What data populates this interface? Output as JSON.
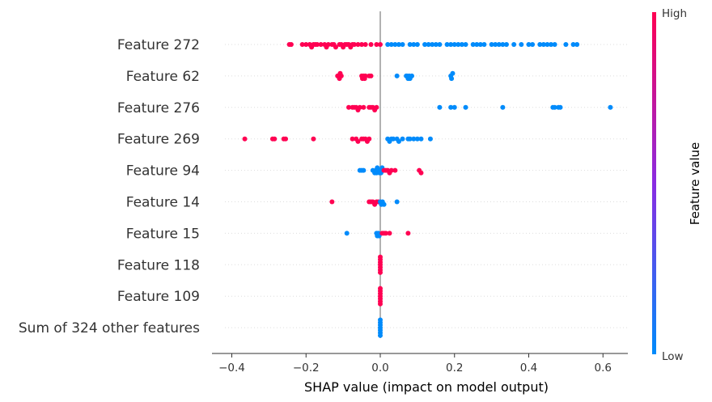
{
  "chart_data": {
    "type": "scatter",
    "subtype": "shap-beeswarm",
    "features": [
      "Feature 272",
      "Feature 62",
      "Feature 276",
      "Feature 269",
      "Feature 94",
      "Feature 14",
      "Feature 15",
      "Feature 118",
      "Feature 109",
      "Sum of 324 other features"
    ],
    "xlabel": "SHAP value (impact on model output)",
    "xticks": [
      -0.4,
      -0.2,
      0.0,
      0.2,
      0.4,
      0.6
    ],
    "xtick_labels": [
      "−0.4",
      "−0.2",
      "0.0",
      "0.2",
      "0.4",
      "0.6"
    ],
    "xlim": [
      -0.41,
      0.66
    ],
    "grid": "dotted horizontal rows",
    "colorbar": {
      "label": "Feature value",
      "high_label": "High",
      "low_label": "Low",
      "high_color": "#ff0052",
      "low_color": "#008bfb",
      "mid_color": "#8a2be2"
    },
    "series": [
      {
        "feature": "Feature 272",
        "points": [
          [
            -0.245,
            1
          ],
          [
            -0.24,
            1
          ],
          [
            -0.21,
            1
          ],
          [
            -0.2,
            1
          ],
          [
            -0.19,
            1
          ],
          [
            -0.185,
            1
          ],
          [
            -0.18,
            1
          ],
          [
            -0.175,
            1
          ],
          [
            -0.17,
            1
          ],
          [
            -0.16,
            1
          ],
          [
            -0.15,
            1
          ],
          [
            -0.145,
            1
          ],
          [
            -0.14,
            1
          ],
          [
            -0.13,
            1
          ],
          [
            -0.125,
            1
          ],
          [
            -0.12,
            1
          ],
          [
            -0.11,
            1
          ],
          [
            -0.105,
            1
          ],
          [
            -0.1,
            1
          ],
          [
            -0.095,
            1
          ],
          [
            -0.09,
            1
          ],
          [
            -0.085,
            1
          ],
          [
            -0.08,
            1
          ],
          [
            -0.075,
            1
          ],
          [
            -0.07,
            1
          ],
          [
            -0.06,
            1
          ],
          [
            -0.05,
            1
          ],
          [
            -0.04,
            1
          ],
          [
            -0.025,
            1
          ],
          [
            -0.01,
            1
          ],
          [
            0.0,
            1
          ],
          [
            0.02,
            0
          ],
          [
            0.03,
            0
          ],
          [
            0.04,
            0
          ],
          [
            0.05,
            0
          ],
          [
            0.06,
            0
          ],
          [
            0.08,
            0
          ],
          [
            0.09,
            0
          ],
          [
            0.1,
            0
          ],
          [
            0.12,
            0
          ],
          [
            0.13,
            0
          ],
          [
            0.14,
            0
          ],
          [
            0.15,
            0
          ],
          [
            0.16,
            0
          ],
          [
            0.18,
            0
          ],
          [
            0.19,
            0
          ],
          [
            0.2,
            0
          ],
          [
            0.21,
            0
          ],
          [
            0.22,
            0
          ],
          [
            0.23,
            0
          ],
          [
            0.25,
            0
          ],
          [
            0.26,
            0
          ],
          [
            0.27,
            0
          ],
          [
            0.28,
            0
          ],
          [
            0.3,
            0
          ],
          [
            0.31,
            0
          ],
          [
            0.32,
            0
          ],
          [
            0.33,
            0
          ],
          [
            0.34,
            0
          ],
          [
            0.36,
            0
          ],
          [
            0.38,
            0
          ],
          [
            0.4,
            0
          ],
          [
            0.41,
            0
          ],
          [
            0.43,
            0
          ],
          [
            0.44,
            0
          ],
          [
            0.45,
            0
          ],
          [
            0.46,
            0
          ],
          [
            0.47,
            0
          ],
          [
            0.5,
            0
          ],
          [
            0.52,
            0
          ],
          [
            0.53,
            0
          ]
        ]
      },
      {
        "feature": "Feature 62",
        "points": [
          [
            -0.115,
            1
          ],
          [
            -0.112,
            1
          ],
          [
            -0.11,
            1
          ],
          [
            -0.108,
            1
          ],
          [
            -0.105,
            1
          ],
          [
            -0.05,
            1
          ],
          [
            -0.048,
            1
          ],
          [
            -0.045,
            1
          ],
          [
            -0.042,
            1
          ],
          [
            -0.04,
            1
          ],
          [
            -0.03,
            1
          ],
          [
            -0.025,
            1
          ],
          [
            0.045,
            0
          ],
          [
            0.07,
            0
          ],
          [
            0.072,
            0
          ],
          [
            0.075,
            0
          ],
          [
            0.078,
            0
          ],
          [
            0.08,
            0
          ],
          [
            0.085,
            0
          ],
          [
            0.19,
            0
          ],
          [
            0.192,
            0
          ],
          [
            0.195,
            0
          ]
        ]
      },
      {
        "feature": "Feature 276",
        "points": [
          [
            -0.085,
            1
          ],
          [
            -0.075,
            1
          ],
          [
            -0.07,
            1
          ],
          [
            -0.065,
            1
          ],
          [
            -0.06,
            1
          ],
          [
            -0.055,
            1
          ],
          [
            -0.045,
            1
          ],
          [
            -0.03,
            1
          ],
          [
            -0.025,
            1
          ],
          [
            -0.02,
            1
          ],
          [
            -0.015,
            1
          ],
          [
            -0.01,
            1
          ],
          [
            0.16,
            0
          ],
          [
            0.19,
            0
          ],
          [
            0.2,
            0
          ],
          [
            0.23,
            0
          ],
          [
            0.33,
            0
          ],
          [
            0.465,
            0
          ],
          [
            0.47,
            0
          ],
          [
            0.48,
            0
          ],
          [
            0.485,
            0
          ],
          [
            0.62,
            0
          ]
        ]
      },
      {
        "feature": "Feature 269",
        "points": [
          [
            -0.365,
            1
          ],
          [
            -0.29,
            1
          ],
          [
            -0.285,
            1
          ],
          [
            -0.26,
            1
          ],
          [
            -0.255,
            1
          ],
          [
            -0.18,
            1
          ],
          [
            -0.075,
            1
          ],
          [
            -0.065,
            1
          ],
          [
            -0.06,
            1
          ],
          [
            -0.05,
            1
          ],
          [
            -0.045,
            1
          ],
          [
            -0.04,
            1
          ],
          [
            -0.035,
            1
          ],
          [
            -0.03,
            1
          ],
          [
            0.02,
            0
          ],
          [
            0.025,
            0
          ],
          [
            0.03,
            0
          ],
          [
            0.035,
            0
          ],
          [
            0.045,
            0
          ],
          [
            0.05,
            0
          ],
          [
            0.06,
            0
          ],
          [
            0.075,
            0
          ],
          [
            0.08,
            0
          ],
          [
            0.09,
            0
          ],
          [
            0.1,
            0
          ],
          [
            0.11,
            0
          ],
          [
            0.135,
            0
          ]
        ]
      },
      {
        "feature": "Feature 94",
        "points": [
          [
            -0.055,
            0
          ],
          [
            -0.05,
            0
          ],
          [
            -0.045,
            0
          ],
          [
            -0.02,
            0
          ],
          [
            -0.015,
            0
          ],
          [
            -0.012,
            0
          ],
          [
            -0.01,
            0
          ],
          [
            -0.008,
            0
          ],
          [
            -0.005,
            0
          ],
          [
            -0.002,
            0
          ],
          [
            0.0,
            0
          ],
          [
            0.002,
            0
          ],
          [
            0.005,
            0
          ],
          [
            0.01,
            1
          ],
          [
            0.015,
            1
          ],
          [
            0.02,
            1
          ],
          [
            0.025,
            1
          ],
          [
            0.03,
            1
          ],
          [
            0.04,
            1
          ],
          [
            0.105,
            1
          ],
          [
            0.11,
            1
          ]
        ]
      },
      {
        "feature": "Feature 14",
        "points": [
          [
            -0.13,
            1
          ],
          [
            -0.03,
            1
          ],
          [
            -0.025,
            1
          ],
          [
            -0.02,
            1
          ],
          [
            -0.015,
            1
          ],
          [
            -0.01,
            1
          ],
          [
            -0.005,
            1
          ],
          [
            0.0,
            0
          ],
          [
            0.003,
            0
          ],
          [
            0.006,
            0
          ],
          [
            0.01,
            0
          ],
          [
            0.045,
            0
          ]
        ]
      },
      {
        "feature": "Feature 15",
        "points": [
          [
            -0.09,
            0
          ],
          [
            -0.01,
            0
          ],
          [
            -0.008,
            0
          ],
          [
            -0.005,
            0
          ],
          [
            -0.003,
            0
          ],
          [
            0.005,
            1
          ],
          [
            0.01,
            1
          ],
          [
            0.015,
            1
          ],
          [
            0.025,
            1
          ],
          [
            0.075,
            1
          ]
        ]
      },
      {
        "feature": "Feature 118",
        "points": [
          [
            0.0,
            1
          ],
          [
            0.0,
            1
          ],
          [
            0.0,
            1
          ],
          [
            0.0,
            1
          ],
          [
            0.0,
            1
          ],
          [
            0.0,
            1
          ],
          [
            0.0,
            1
          ]
        ]
      },
      {
        "feature": "Feature 109",
        "points": [
          [
            0.0,
            1
          ],
          [
            0.0,
            1
          ],
          [
            0.0,
            1
          ],
          [
            0.0,
            1
          ],
          [
            0.0,
            1
          ],
          [
            0.0,
            1
          ],
          [
            0.0,
            1
          ]
        ]
      },
      {
        "feature": "Sum of 324 other features",
        "points": [
          [
            0.0,
            0
          ],
          [
            0.0,
            0
          ],
          [
            0.0,
            0
          ],
          [
            0.0,
            0
          ],
          [
            0.0,
            0
          ],
          [
            0.0,
            0
          ],
          [
            0.0,
            0
          ]
        ]
      }
    ]
  }
}
